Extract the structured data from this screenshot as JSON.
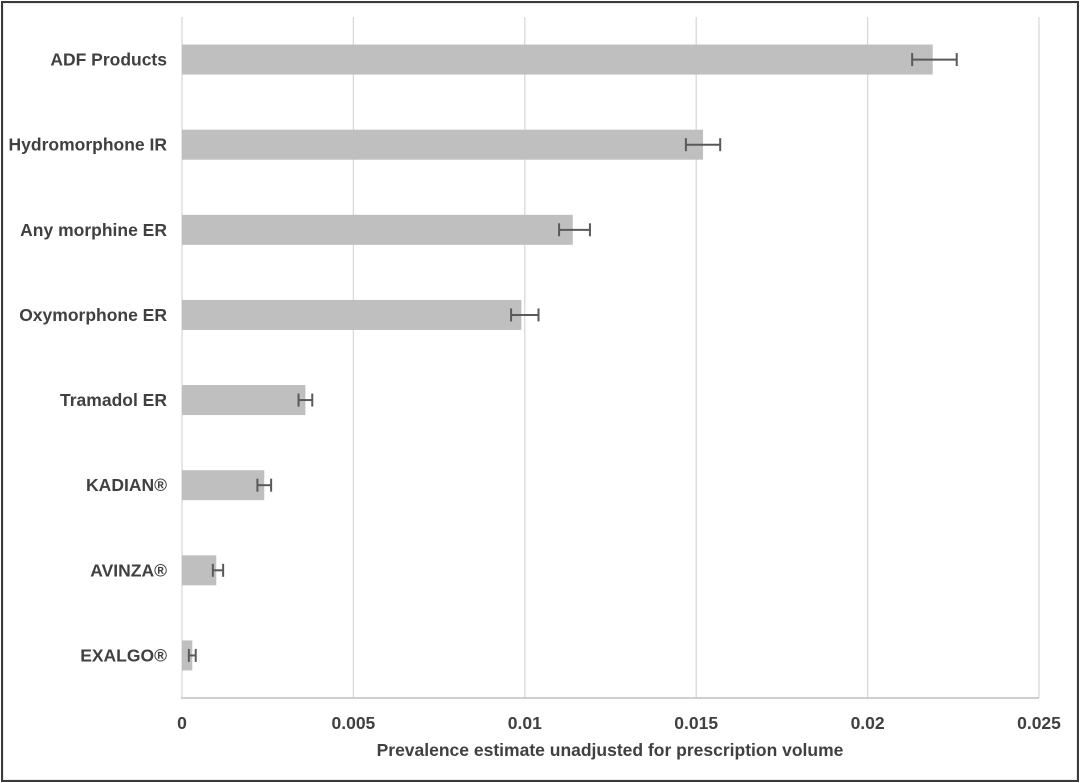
{
  "figure": {
    "background_color": "#ffffff",
    "border_color": "#3a3a3a"
  },
  "chart_data": {
    "type": "bar",
    "orientation": "horizontal",
    "title": "",
    "xlabel": "Prevalence estimate unadjusted for prescription volume",
    "ylabel": "",
    "xlim": [
      0,
      0.025
    ],
    "x_tick_values": [
      0,
      0.005,
      0.01,
      0.015,
      0.02,
      0.025
    ],
    "x_tick_labels": [
      "0",
      "0.005",
      "0.01",
      "0.015",
      "0.02",
      "0.025"
    ],
    "grid": true,
    "legend": "none",
    "categories": [
      "ADF Products",
      "Hydromorphone IR",
      "Any morphine ER",
      "Oxymorphone ER",
      "Tramadol ER",
      "KADIAN®",
      "AVINZA®",
      "EXALGO®"
    ],
    "values": [
      0.0219,
      0.0152,
      0.0114,
      0.0099,
      0.0036,
      0.0024,
      0.001,
      0.0003
    ],
    "error_low": [
      0.0213,
      0.0147,
      0.011,
      0.0096,
      0.0034,
      0.0022,
      0.0009,
      0.0002
    ],
    "error_high": [
      0.0226,
      0.0157,
      0.0119,
      0.0104,
      0.0038,
      0.0026,
      0.0012,
      0.0004
    ],
    "bar_color": "#bfbfbf",
    "error_bar_color": "#595959",
    "gridline_color": "#d9d9d9",
    "axis_line_color": "#bfbfbf",
    "text_color": "#404040"
  }
}
